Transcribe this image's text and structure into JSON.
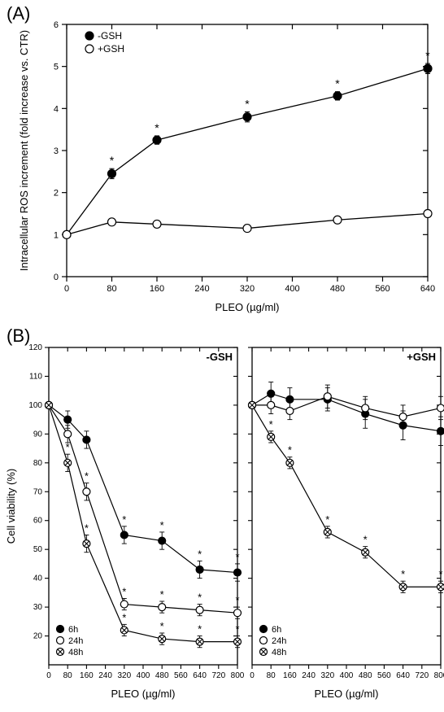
{
  "panelA": {
    "label": "(A)",
    "type": "line",
    "xlabel": "PLEO (µg/ml)",
    "ylabel": "Intracellular ROS increment (fold increase vs. CTR)",
    "label_fontsize": 13,
    "tick_fontsize": 11,
    "legend_fontsize": 12,
    "xlim": [
      0,
      640
    ],
    "ylim": [
      0,
      6
    ],
    "xticks": [
      0,
      80,
      160,
      240,
      320,
      400,
      480,
      560,
      640
    ],
    "yticks": [
      0,
      1,
      2,
      3,
      4,
      5,
      6
    ],
    "background_color": "#ffffff",
    "axis_color": "#000000",
    "marker_size": 5,
    "line_width": 1.3,
    "errcap": 3,
    "series": [
      {
        "name": "-GSH",
        "marker": "filled-circle",
        "marker_fill": "#000000",
        "marker_stroke": "#000000",
        "line_color": "#000000",
        "x": [
          0,
          80,
          160,
          320,
          480,
          640
        ],
        "y": [
          1.0,
          2.45,
          3.25,
          3.8,
          4.3,
          4.95
        ],
        "err": [
          0,
          0.12,
          0.1,
          0.12,
          0.1,
          0.12
        ],
        "sig": [
          false,
          true,
          true,
          true,
          true,
          true
        ]
      },
      {
        "name": "+GSH",
        "marker": "open-circle",
        "marker_fill": "#ffffff",
        "marker_stroke": "#000000",
        "line_color": "#000000",
        "x": [
          0,
          80,
          160,
          320,
          480,
          640
        ],
        "y": [
          1.0,
          1.3,
          1.25,
          1.15,
          1.35,
          1.5
        ],
        "err": [
          0,
          0.07,
          0.06,
          0.06,
          0.07,
          0.07
        ],
        "sig": [
          false,
          false,
          false,
          false,
          false,
          false
        ]
      }
    ]
  },
  "panelB": {
    "label": "(B)",
    "type": "line",
    "xlabel": "PLEO (µg/ml)",
    "ylabel": "Cell viability (%)",
    "label_fontsize": 13,
    "tick_fontsize": 10,
    "legend_fontsize": 11,
    "xlim": [
      0,
      800
    ],
    "ylim": [
      10,
      120
    ],
    "xticks": [
      0,
      80,
      160,
      240,
      320,
      400,
      480,
      560,
      640,
      720,
      800
    ],
    "yticks": [
      20,
      30,
      40,
      50,
      60,
      70,
      80,
      90,
      100,
      110,
      120
    ],
    "background_color": "#ffffff",
    "axis_color": "#000000",
    "marker_size": 4.5,
    "line_width": 1.2,
    "errcap": 3,
    "subplots": [
      {
        "title": "-GSH",
        "series": [
          {
            "name": "6h",
            "marker": "filled-circle",
            "marker_fill": "#000000",
            "marker_stroke": "#000000",
            "line_color": "#000000",
            "x": [
              0,
              80,
              160,
              320,
              480,
              640,
              800
            ],
            "y": [
              100,
              95,
              88,
              55,
              53,
              43,
              42
            ],
            "err": [
              0,
              3,
              3,
              3,
              3,
              3,
              3
            ],
            "sig": [
              false,
              false,
              false,
              true,
              true,
              true,
              true
            ]
          },
          {
            "name": "24h",
            "marker": "open-circle",
            "marker_fill": "#ffffff",
            "marker_stroke": "#000000",
            "line_color": "#000000",
            "x": [
              0,
              80,
              160,
              320,
              480,
              640,
              800
            ],
            "y": [
              100,
              90,
              70,
              31,
              30,
              29,
              28
            ],
            "err": [
              0,
              3,
              3,
              2,
              2,
              2,
              2
            ],
            "sig": [
              false,
              false,
              true,
              true,
              true,
              true,
              true
            ]
          },
          {
            "name": "48h",
            "marker": "x-circle",
            "marker_fill": "#ffffff",
            "marker_stroke": "#000000",
            "line_color": "#000000",
            "x": [
              0,
              80,
              160,
              320,
              480,
              640,
              800
            ],
            "y": [
              100,
              80,
              52,
              22,
              19,
              18,
              18
            ],
            "err": [
              0,
              3,
              3,
              2,
              2,
              2,
              2
            ],
            "sig": [
              false,
              true,
              true,
              true,
              true,
              true,
              true
            ]
          }
        ]
      },
      {
        "title": "+GSH",
        "series": [
          {
            "name": "6h",
            "marker": "filled-circle",
            "marker_fill": "#000000",
            "marker_stroke": "#000000",
            "line_color": "#000000",
            "x": [
              0,
              80,
              160,
              320,
              480,
              640,
              800
            ],
            "y": [
              100,
              104,
              102,
              102,
              97,
              93,
              91
            ],
            "err": [
              0,
              4,
              4,
              4,
              5,
              5,
              5
            ],
            "sig": [
              false,
              false,
              false,
              false,
              false,
              false,
              false
            ]
          },
          {
            "name": "24h",
            "marker": "open-circle",
            "marker_fill": "#ffffff",
            "marker_stroke": "#000000",
            "line_color": "#000000",
            "x": [
              0,
              80,
              160,
              320,
              480,
              640,
              800
            ],
            "y": [
              100,
              100,
              98,
              103,
              99,
              96,
              99
            ],
            "err": [
              0,
              3,
              3,
              4,
              4,
              4,
              4
            ],
            "sig": [
              false,
              false,
              false,
              false,
              false,
              false,
              false
            ]
          },
          {
            "name": "48h",
            "marker": "x-circle",
            "marker_fill": "#ffffff",
            "marker_stroke": "#000000",
            "line_color": "#000000",
            "x": [
              0,
              80,
              160,
              320,
              480,
              640,
              800
            ],
            "y": [
              100,
              89,
              80,
              56,
              49,
              37,
              37
            ],
            "err": [
              0,
              2,
              2,
              2,
              2,
              2,
              2
            ],
            "sig": [
              false,
              true,
              true,
              true,
              true,
              true,
              true
            ]
          }
        ]
      }
    ]
  }
}
